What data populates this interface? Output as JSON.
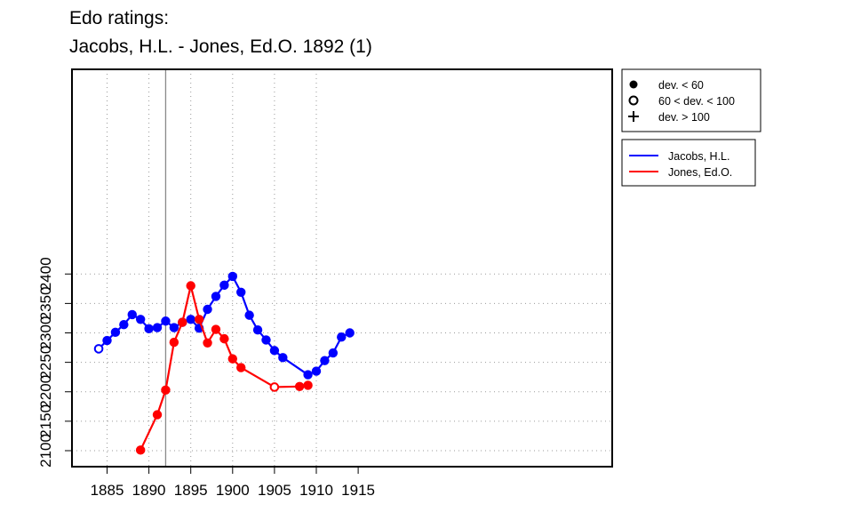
{
  "title_lines": [
    "Edo ratings:",
    "Jacobs, H.L. - Jones, Ed.O. 1892 (1)"
  ],
  "marker_legend": [
    {
      "symbol": "filled-circle",
      "label": "dev. < 60"
    },
    {
      "symbol": "open-circle",
      "label": "60 < dev. < 100"
    },
    {
      "symbol": "plus",
      "label": "dev. > 100"
    }
  ],
  "chart_data": {
    "type": "line",
    "title": "Edo ratings: Jacobs, H.L. - Jones, Ed.O. 1892 (1)",
    "xlabel": "",
    "ylabel": "",
    "xlim": [
      1882,
      1915
    ],
    "ylim": [
      2095,
      2405
    ],
    "x_ticks": [
      1885,
      1890,
      1895,
      1900,
      1905,
      1910,
      1915
    ],
    "y_ticks": [
      2100,
      2150,
      2200,
      2250,
      2300,
      2350,
      2400
    ],
    "grid": true,
    "reference_line_x": 1892,
    "series": [
      {
        "name": "Jacobs, H.L.",
        "color": "#0000ff",
        "points": [
          {
            "x": 1884,
            "y": 2273,
            "marker": "open"
          },
          {
            "x": 1885,
            "y": 2287,
            "marker": "filled"
          },
          {
            "x": 1886,
            "y": 2301,
            "marker": "filled"
          },
          {
            "x": 1887,
            "y": 2314,
            "marker": "filled"
          },
          {
            "x": 1888,
            "y": 2331,
            "marker": "filled"
          },
          {
            "x": 1889,
            "y": 2323,
            "marker": "filled"
          },
          {
            "x": 1890,
            "y": 2307,
            "marker": "filled"
          },
          {
            "x": 1891,
            "y": 2309,
            "marker": "filled"
          },
          {
            "x": 1892,
            "y": 2320,
            "marker": "filled"
          },
          {
            "x": 1893,
            "y": 2309,
            "marker": "filled"
          },
          {
            "x": 1894,
            "y": 2318,
            "marker": "filled"
          },
          {
            "x": 1895,
            "y": 2323,
            "marker": "filled"
          },
          {
            "x": 1896,
            "y": 2308,
            "marker": "filled"
          },
          {
            "x": 1897,
            "y": 2340,
            "marker": "filled"
          },
          {
            "x": 1898,
            "y": 2362,
            "marker": "filled"
          },
          {
            "x": 1899,
            "y": 2381,
            "marker": "filled"
          },
          {
            "x": 1900,
            "y": 2396,
            "marker": "filled"
          },
          {
            "x": 1901,
            "y": 2369,
            "marker": "filled"
          },
          {
            "x": 1902,
            "y": 2330,
            "marker": "filled"
          },
          {
            "x": 1903,
            "y": 2305,
            "marker": "filled"
          },
          {
            "x": 1904,
            "y": 2288,
            "marker": "filled"
          },
          {
            "x": 1905,
            "y": 2270,
            "marker": "filled"
          },
          {
            "x": 1906,
            "y": 2258,
            "marker": "filled"
          },
          {
            "x": 1909,
            "y": 2229,
            "marker": "filled"
          },
          {
            "x": 1910,
            "y": 2235,
            "marker": "filled"
          },
          {
            "x": 1911,
            "y": 2253,
            "marker": "filled"
          },
          {
            "x": 1912,
            "y": 2266,
            "marker": "filled"
          },
          {
            "x": 1913,
            "y": 2293,
            "marker": "filled"
          },
          {
            "x": 1914,
            "y": 2300,
            "marker": "filled"
          }
        ]
      },
      {
        "name": "Jones, Ed.O.",
        "color": "#ff0000",
        "points": [
          {
            "x": 1889,
            "y": 2101,
            "marker": "filled"
          },
          {
            "x": 1891,
            "y": 2161,
            "marker": "filled"
          },
          {
            "x": 1892,
            "y": 2203,
            "marker": "filled"
          },
          {
            "x": 1893,
            "y": 2284,
            "marker": "filled"
          },
          {
            "x": 1894,
            "y": 2318,
            "marker": "filled"
          },
          {
            "x": 1895,
            "y": 2380,
            "marker": "filled"
          },
          {
            "x": 1896,
            "y": 2323,
            "marker": "filled"
          },
          {
            "x": 1897,
            "y": 2283,
            "marker": "filled"
          },
          {
            "x": 1898,
            "y": 2306,
            "marker": "filled"
          },
          {
            "x": 1899,
            "y": 2290,
            "marker": "filled"
          },
          {
            "x": 1900,
            "y": 2256,
            "marker": "filled"
          },
          {
            "x": 1901,
            "y": 2241,
            "marker": "filled"
          },
          {
            "x": 1905,
            "y": 2208,
            "marker": "open"
          },
          {
            "x": 1908,
            "y": 2209,
            "marker": "filled"
          },
          {
            "x": 1909,
            "y": 2211,
            "marker": "filled"
          }
        ]
      }
    ]
  }
}
